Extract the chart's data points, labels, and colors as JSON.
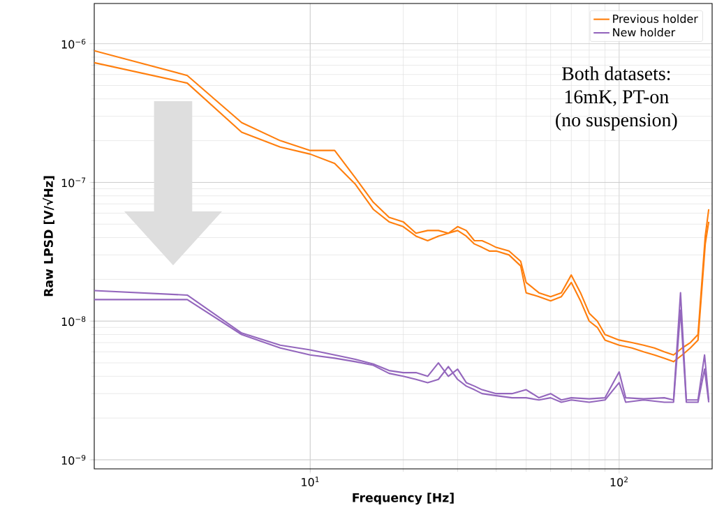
{
  "chart_data": {
    "type": "line",
    "xlabel": "Frequency [Hz]",
    "ylabel": "Raw LPSD [V/√Hz]",
    "log": "xy",
    "grid": true,
    "legend": "top right",
    "xlim": [
      2,
      200
    ],
    "ylim": [
      8.6e-10,
      1.95e-06
    ],
    "xticks": [
      {
        "value": 10,
        "label": "10$^{1}$"
      },
      {
        "value": 100,
        "label": "10$^{2}$"
      }
    ],
    "yticks": [
      {
        "value": 1e-09,
        "label": "10$^{−9}$"
      },
      {
        "value": 1e-08,
        "label": "10$^{−8}$"
      },
      {
        "value": 1e-07,
        "label": "10$^{−7}$"
      },
      {
        "value": 1e-06,
        "label": "10$^{−6}$"
      }
    ],
    "annotations": [
      "Both datasets:",
      "16mK, PT-on",
      "(no suspension)"
    ],
    "series": [
      {
        "name": "Previous holder",
        "color": "#ff7f0e",
        "x": [
          2,
          4,
          6,
          8,
          10,
          12,
          14,
          16,
          18,
          20,
          22,
          24,
          26,
          28,
          30,
          32,
          34,
          36,
          38,
          40,
          44,
          48,
          50,
          55,
          60,
          65,
          70,
          75,
          80,
          85,
          90,
          100,
          110,
          120,
          130,
          140,
          150,
          160,
          170,
          180,
          190,
          195
        ],
        "values": [
          8.9e-07,
          5.9e-07,
          2.7e-07,
          2e-07,
          1.7e-07,
          1.7e-07,
          1.08e-07,
          7.2e-08,
          5.6e-08,
          5.2e-08,
          4.3e-08,
          4.5e-08,
          4.5e-08,
          4.3e-08,
          4.8e-08,
          4.5e-08,
          3.8e-08,
          3.8e-08,
          3.6e-08,
          3.4e-08,
          3.2e-08,
          2.7e-08,
          1.9e-08,
          1.6e-08,
          1.5e-08,
          1.6e-08,
          2.15e-08,
          1.6e-08,
          1.14e-08,
          1e-08,
          8e-09,
          7.3e-09,
          7e-09,
          6.7e-09,
          6.4e-09,
          6e-09,
          5.7e-09,
          6.4e-09,
          7e-09,
          8e-09,
          4.1e-08,
          6.4e-08
        ]
      },
      {
        "color": "#ff7f0e",
        "x": [
          2,
          4,
          6,
          8,
          10,
          12,
          14,
          16,
          18,
          20,
          22,
          24,
          26,
          28,
          30,
          32,
          34,
          36,
          38,
          40,
          44,
          48,
          50,
          55,
          60,
          65,
          70,
          75,
          80,
          85,
          90,
          100,
          110,
          120,
          130,
          140,
          150,
          160,
          170,
          180,
          190,
          195
        ],
        "values": [
          7.3e-07,
          5.2e-07,
          2.3e-07,
          1.8e-07,
          1.6e-07,
          1.37e-07,
          9.7e-08,
          6.4e-08,
          5.2e-08,
          4.8e-08,
          4.1e-08,
          3.8e-08,
          4.1e-08,
          4.3e-08,
          4.5e-08,
          4.1e-08,
          3.6e-08,
          3.4e-08,
          3.2e-08,
          3.2e-08,
          3e-08,
          2.5e-08,
          1.6e-08,
          1.5e-08,
          1.4e-08,
          1.5e-08,
          1.9e-08,
          1.4e-08,
          1e-08,
          9e-09,
          7.3e-09,
          6.7e-09,
          6.4e-09,
          6e-09,
          5.7e-09,
          5.4e-09,
          5.1e-09,
          5.7e-09,
          6.4e-09,
          7.3e-09,
          3.6e-08,
          5.2e-08
        ]
      },
      {
        "name": "New holder",
        "color": "#9467bd",
        "x": [
          2,
          4,
          6,
          8,
          10,
          12,
          14,
          16,
          18,
          20,
          22,
          24,
          26,
          28,
          30,
          32,
          34,
          36,
          40,
          45,
          50,
          55,
          60,
          65,
          70,
          80,
          90,
          100,
          105,
          120,
          140,
          150,
          158,
          165,
          180,
          189,
          195
        ],
        "values": [
          1.66e-08,
          1.54e-08,
          8.2e-09,
          6.7e-09,
          6.2e-09,
          5.7e-09,
          5.3e-09,
          4.9e-09,
          4.4e-09,
          4.25e-09,
          4.25e-09,
          4e-09,
          5e-09,
          4e-09,
          4.5e-09,
          3.6e-09,
          3.4e-09,
          3.2e-09,
          3e-09,
          3e-09,
          3.2e-09,
          2.8e-09,
          3e-09,
          2.7e-09,
          2.8e-09,
          2.75e-09,
          2.8e-09,
          4.3e-09,
          2.8e-09,
          2.75e-09,
          2.8e-09,
          2.7e-09,
          1.6e-08,
          2.7e-09,
          2.7e-09,
          5.7e-09,
          2.7e-09
        ]
      },
      {
        "color": "#9467bd",
        "x": [
          2,
          4,
          6,
          8,
          10,
          12,
          14,
          16,
          18,
          20,
          22,
          24,
          26,
          28,
          30,
          32,
          34,
          36,
          40,
          45,
          50,
          55,
          60,
          65,
          70,
          80,
          90,
          100,
          105,
          120,
          140,
          150,
          158,
          165,
          180,
          189,
          195
        ],
        "values": [
          1.43e-08,
          1.43e-08,
          8e-09,
          6.4e-09,
          5.7e-09,
          5.4e-09,
          5.1e-09,
          4.8e-09,
          4.2e-09,
          4e-09,
          3.8e-09,
          3.6e-09,
          3.8e-09,
          4.7e-09,
          3.8e-09,
          3.4e-09,
          3.2e-09,
          3e-09,
          2.9e-09,
          2.8e-09,
          2.8e-09,
          2.7e-09,
          2.8e-09,
          2.6e-09,
          2.7e-09,
          2.6e-09,
          2.7e-09,
          3.6e-09,
          2.6e-09,
          2.7e-09,
          2.6e-09,
          2.6e-09,
          1.2e-08,
          2.6e-09,
          2.6e-09,
          4.5e-09,
          2.6e-09
        ]
      }
    ]
  }
}
